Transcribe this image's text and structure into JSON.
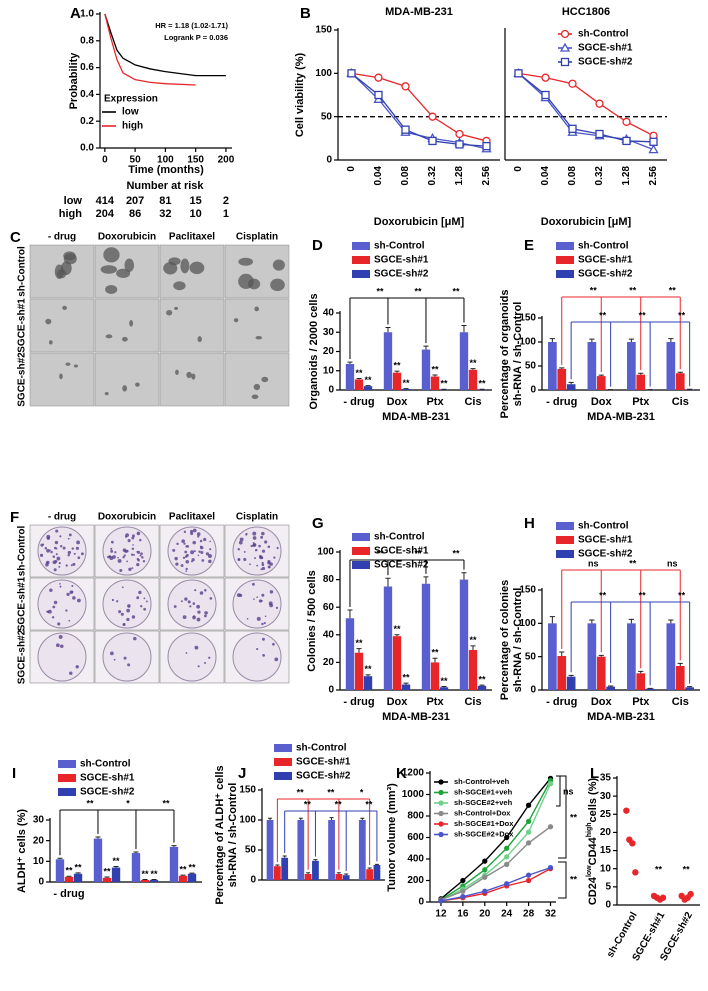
{
  "chart_data": [
    {
      "type": "line",
      "panel": "A",
      "x_label": "Time (months)",
      "y_label": "Probability",
      "xlim": [
        -8,
        210
      ],
      "xticks": [
        0,
        50,
        100,
        150,
        200
      ],
      "ylim": [
        0,
        1.0
      ],
      "yticks": [
        {
          "value": 0,
          "label": "0.0"
        },
        {
          "value": 0.2,
          "label": "0.2"
        },
        {
          "value": 0.4,
          "label": "0.4"
        },
        {
          "value": 0.6,
          "label": "0.6"
        },
        {
          "value": 0.8,
          "label": "0.8"
        },
        {
          "value": 1.0,
          "label": "1.0"
        }
      ],
      "annotations": [
        "HR = 1.18 (1.02-1.71)",
        "Logrank P = 0.036"
      ],
      "legend_title": "Expression",
      "series": [
        {
          "name": "low",
          "color": "#000000",
          "x": [
            0,
            10,
            20,
            30,
            50,
            75,
            100,
            150,
            200
          ],
          "values": [
            1,
            0.86,
            0.73,
            0.67,
            0.62,
            0.59,
            0.57,
            0.54,
            0.54
          ]
        },
        {
          "name": "high",
          "color": "#e8262a",
          "x": [
            0,
            10,
            20,
            30,
            50,
            75,
            100,
            150
          ],
          "values": [
            1,
            0.82,
            0.66,
            0.56,
            0.51,
            0.49,
            0.48,
            0.47
          ]
        }
      ]
    },
    {
      "type": "line",
      "panel": "B",
      "title": "MDA-MB-231",
      "y_label": "Cell viability (%)",
      "x_label": "Doxorubicin [μM]",
      "categories": [
        "0",
        "0.04",
        "0.08",
        "0.32",
        "1.28",
        "2.56"
      ],
      "ylim": [
        0,
        150
      ],
      "yticks": [
        0,
        50,
        100,
        150
      ],
      "reference_line": 50,
      "series": [
        {
          "color": "#e8262a",
          "marker": "circle",
          "values": [
            100,
            95,
            85,
            50,
            30,
            22
          ]
        },
        {
          "color": "#4a55c8",
          "marker": "triangle",
          "values": [
            100,
            70,
            32,
            25,
            20,
            13
          ]
        },
        {
          "color": "#3040b0",
          "marker": "square",
          "values": [
            100,
            75,
            35,
            22,
            18,
            16
          ]
        }
      ]
    },
    {
      "type": "line",
      "title": "HCC1806",
      "x_label": "Doxorubicin [μM]",
      "categories": [
        "0",
        "0.04",
        "0.08",
        "0.32",
        "1.28",
        "2.56"
      ],
      "ylim": [
        0,
        150
      ],
      "reference_line": 50,
      "series": [
        {
          "name": "sh-Control",
          "color": "#e8262a",
          "marker": "circle",
          "values": [
            100,
            95,
            88,
            65,
            44,
            28
          ]
        },
        {
          "name": "SGCE-sh#1",
          "color": "#4a55c8",
          "marker": "triangle",
          "values": [
            100,
            72,
            32,
            28,
            24,
            12
          ]
        },
        {
          "name": "SGCE-sh#2",
          "color": "#3040b0",
          "marker": "square",
          "values": [
            100,
            75,
            36,
            30,
            22,
            21
          ]
        }
      ]
    },
    {
      "type": "bar",
      "panel": "D",
      "y_label": "Organoids / 2000 cells",
      "x_label": "MDA-MB-231",
      "categories": [
        "- drug",
        "Dox",
        "Ptx",
        "Cis"
      ],
      "ylim": [
        0,
        40
      ],
      "yticks": [
        0,
        10,
        20,
        30,
        40
      ],
      "comparisons": [
        "**",
        "**",
        "**"
      ],
      "series": [
        {
          "name": "sh-Control",
          "color": "#5a5fcf",
          "values": [
            13.5,
            30,
            21,
            30
          ],
          "errors": [
            1,
            2.5,
            1.8,
            3.5
          ]
        },
        {
          "name": "SGCE-sh#1",
          "color": "#e8262a",
          "values": [
            5.5,
            9,
            7,
            10.5
          ],
          "errors": [
            0.5,
            0.8,
            0.8,
            0.6
          ],
          "marks": [
            "**",
            "**",
            "**",
            "**"
          ]
        },
        {
          "name": "SGCE-sh#2",
          "color": "#3040b0",
          "values": [
            2,
            0.5,
            0.3,
            0.3
          ],
          "errors": [
            0.3,
            0.2,
            0.1,
            0.1
          ],
          "marks": [
            "**",
            "**",
            "**",
            "**"
          ]
        }
      ]
    },
    {
      "type": "bar",
      "panel": "E",
      "y_label": [
        "Percentage of organoids",
        "sh-RNA / sh-Control"
      ],
      "x_label": "MDA-MB-231",
      "categories": [
        "- drug",
        "Dox",
        "Ptx",
        "Cis"
      ],
      "ylim": [
        0,
        150
      ],
      "yticks": [
        0,
        50,
        100,
        150
      ],
      "comparisons": [
        "**",
        "**",
        "**"
      ],
      "comparisons_2": [
        "**",
        "**",
        "**"
      ],
      "series": [
        {
          "name": "sh-Control",
          "color": "#5a5fcf",
          "values": [
            100,
            100,
            100,
            100
          ],
          "errors": [
            7,
            6,
            6,
            7
          ]
        },
        {
          "name": "SGCE-sh#1",
          "color": "#e8262a",
          "values": [
            44,
            29,
            32,
            35
          ],
          "errors": [
            2,
            2,
            3,
            2
          ]
        },
        {
          "name": "SGCE-sh#2",
          "color": "#3040b0",
          "values": [
            12,
            0.5,
            0.5,
            1
          ],
          "errors": [
            4,
            0.2,
            0.2,
            0.5
          ]
        }
      ]
    },
    {
      "type": "bar",
      "panel": "G",
      "y_label": "Colonies / 500 cells",
      "x_label": "MDA-MB-231",
      "categories": [
        "- drug",
        "Dox",
        "Ptx",
        "Cis"
      ],
      "ylim": [
        0,
        100
      ],
      "yticks": [
        0,
        20,
        40,
        60,
        80,
        100
      ],
      "comparisons": [
        "**",
        "**",
        "**"
      ],
      "series": [
        {
          "name": "sh-Control",
          "color": "#5a5fcf",
          "values": [
            52,
            75,
            77,
            80
          ],
          "errors": [
            6,
            6,
            5,
            5
          ]
        },
        {
          "name": "SGCE-sh#1",
          "color": "#e8262a",
          "values": [
            27,
            39,
            20,
            29
          ],
          "errors": [
            3,
            1,
            3,
            3
          ],
          "marks": [
            "**",
            "**",
            "**",
            "**"
          ]
        },
        {
          "name": "SGCE-sh#2",
          "color": "#3040b0",
          "values": [
            10,
            4,
            2,
            3
          ],
          "errors": [
            1,
            1,
            0.5,
            0.5
          ],
          "marks": [
            "**",
            "**",
            "**",
            "**"
          ]
        }
      ]
    },
    {
      "type": "bar",
      "panel": "H",
      "y_label": [
        "Percentage of colonies",
        "sh-RNA / sh-Control"
      ],
      "x_label": "MDA-MB-231",
      "categories": [
        "- drug",
        "Dox",
        "Ptx",
        "Cis"
      ],
      "ylim": [
        0,
        150
      ],
      "yticks": [
        0,
        50,
        100,
        150
      ],
      "comparisons": [
        "ns",
        "**",
        "ns"
      ],
      "comparisons_2": [
        "**",
        "**",
        "**"
      ],
      "series": [
        {
          "name": "sh-Control",
          "color": "#5a5fcf",
          "values": [
            100,
            100,
            100,
            100
          ],
          "errors": [
            10,
            5,
            6,
            5
          ]
        },
        {
          "name": "SGCE-sh#1",
          "color": "#e8262a",
          "values": [
            51,
            50,
            25,
            36
          ],
          "errors": [
            6,
            2,
            3,
            4
          ]
        },
        {
          "name": "SGCE-sh#2",
          "color": "#3040b0",
          "values": [
            20,
            5,
            2,
            4
          ],
          "errors": [
            2,
            1,
            0.5,
            1
          ]
        }
      ]
    },
    {
      "type": "bar",
      "panel": "I",
      "y_label": "ALDH⁺ cells (%)",
      "categories": [
        "- drug",
        null,
        null,
        null
      ],
      "ylim": [
        0,
        30
      ],
      "yticks": [
        0,
        10,
        20,
        30
      ],
      "comparisons": [
        "**",
        "*",
        "**"
      ],
      "series": [
        {
          "name": "sh-Control",
          "color": "#5a5fcf",
          "values": [
            11,
            21,
            14,
            17
          ],
          "errors": [
            0.5,
            0.8,
            0.5,
            0.6
          ]
        },
        {
          "name": "SGCE-sh#1",
          "color": "#e8262a",
          "values": [
            2.5,
            2,
            1,
            3
          ],
          "errors": [
            0.3,
            0.4,
            0.2,
            0.3
          ],
          "marks": [
            "**",
            "**",
            "**",
            "**"
          ]
        },
        {
          "name": "SGCE-sh#2",
          "color": "#3040b0",
          "values": [
            4,
            7,
            1,
            4
          ],
          "errors": [
            0.4,
            0.5,
            0.2,
            0.3
          ],
          "marks": [
            "**",
            "**",
            "**",
            "**"
          ]
        }
      ]
    },
    {
      "type": "bar",
      "panel": "J",
      "y_label": [
        "Percentage of ALDH⁺ cells",
        "sh-RNA / sh-Control"
      ],
      "categories": [
        null,
        null,
        null,
        null
      ],
      "ylim": [
        0,
        150
      ],
      "yticks": [
        0,
        50,
        100,
        150
      ],
      "comparisons": [
        "**",
        "**",
        "*"
      ],
      "comparisons_2": [
        "**",
        "**",
        "**"
      ],
      "series": [
        {
          "name": "sh-Control",
          "color": "#5a5fcf",
          "values": [
            100,
            100,
            100,
            100
          ],
          "errors": [
            3,
            3,
            4,
            3
          ]
        },
        {
          "name": "SGCE-sh#1",
          "color": "#e8262a",
          "values": [
            23,
            10,
            10,
            18
          ],
          "errors": [
            2,
            2,
            2,
            2
          ]
        },
        {
          "name": "SGCE-sh#2",
          "color": "#3040b0",
          "values": [
            37,
            32,
            8,
            25
          ],
          "errors": [
            3,
            2,
            2,
            1
          ]
        }
      ]
    },
    {
      "type": "line",
      "panel": "K",
      "y_label": "Tumor volume (mm³)",
      "x": [
        12,
        16,
        20,
        24,
        28,
        32
      ],
      "xlim": [
        10,
        33
      ],
      "xticks": [
        12,
        16,
        20,
        24,
        28,
        32
      ],
      "ylim": [
        0,
        1200
      ],
      "yticks": [
        0,
        200,
        400,
        600,
        800,
        1000,
        1200
      ],
      "annotations": [
        "ns",
        "**",
        "**"
      ],
      "series": [
        {
          "name": "sh-Control+veh",
          "color": "#000000",
          "values": [
            30,
            200,
            380,
            600,
            900,
            1150
          ]
        },
        {
          "name": "sh-SGCE#1+veh",
          "color": "#1fa33a",
          "values": [
            20,
            150,
            300,
            500,
            750,
            1130
          ]
        },
        {
          "name": "sh-SGCE#2+veh",
          "color": "#6fd08a",
          "values": [
            15,
            120,
            250,
            420,
            650,
            1100
          ]
        },
        {
          "name": "sh-Control+Dox",
          "color": "#8a8a8a",
          "values": [
            20,
            100,
            230,
            350,
            550,
            700
          ]
        },
        {
          "name": "sh-SGCE#1+Dox",
          "color": "#e8262a",
          "values": [
            10,
            40,
            80,
            150,
            200,
            310
          ]
        },
        {
          "name": "sh-SGCE#2+Dox",
          "color": "#4a55c8",
          "values": [
            10,
            50,
            100,
            170,
            250,
            320
          ]
        }
      ]
    },
    {
      "type": "strip",
      "panel": "L",
      "y_label_parts": [
        "CD24",
        "low",
        "CD44",
        "high",
        "cells (%)"
      ],
      "categories": [
        "sh-Control",
        "SGCE-sh#1",
        "SGCE-sh#2"
      ],
      "ylim": [
        0,
        35
      ],
      "yticks": [
        0,
        5,
        10,
        15,
        20,
        25,
        30,
        35
      ],
      "color": "#e8262a",
      "values": [
        [
          26,
          18,
          17,
          9
        ],
        [
          2.5,
          2,
          1.5,
          2
        ],
        [
          2.5,
          1.5,
          2,
          3
        ]
      ],
      "marks": [
        null,
        "**",
        "**"
      ]
    }
  ],
  "risk_table": {
    "title": "Number at risk",
    "rows": [
      {
        "label": "low",
        "values": [
          414,
          207,
          81,
          15,
          2
        ]
      },
      {
        "label": "high",
        "values": [
          204,
          86,
          32,
          10,
          1
        ]
      }
    ]
  },
  "image_panels": [
    {
      "panel": "C",
      "columns": [
        "- drug",
        "Doxorubicin",
        "Paclitaxel",
        "Cisplatin"
      ],
      "rows": [
        "sh-Control",
        "SGCE-sh#1",
        "SGCE-sh#2"
      ]
    },
    {
      "panel": "F",
      "columns": [
        "- drug",
        "Doxorubicin",
        "Paclitaxel",
        "Cisplatin"
      ],
      "rows": [
        "sh-Control",
        "SGCE-sh#1",
        "SGCE-sh#2"
      ]
    }
  ]
}
